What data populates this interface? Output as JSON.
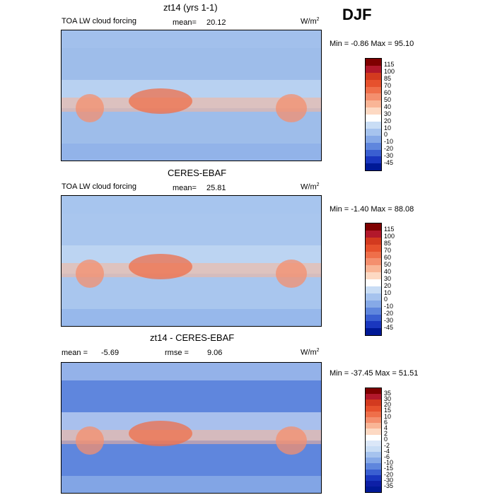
{
  "season": "DJF",
  "panels": [
    {
      "title": "zt14 (yrs 1-1)",
      "label_left": "TOA LW cloud forcing",
      "stat_a_label": "mean=",
      "stat_a_value": "20.12",
      "stat_b_label": "",
      "stat_b_value": "",
      "units_base": "W/m",
      "units_exp": "2",
      "minmax": "Min =  -0.86  Max =  95.10",
      "colorbar_labels": [
        "115",
        "100",
        "85",
        "70",
        "60",
        "50",
        "40",
        "30",
        "20",
        "10",
        "0",
        "-10",
        "-20",
        "-30",
        "-45"
      ],
      "colorbar_colors": [
        "#7f0000",
        "#b2182b",
        "#d33a1f",
        "#e6512d",
        "#ef6f4a",
        "#f48f6e",
        "#f9b596",
        "#fdd9c3",
        "#ffffff",
        "#c9ddf5",
        "#a6c3ee",
        "#86a9e7",
        "#5f86dd",
        "#3a5fd1",
        "#1a37bf",
        "#001996"
      ],
      "map_fill": "#9ebdea"
    },
    {
      "title": "CERES-EBAF",
      "label_left": "TOA LW cloud forcing",
      "stat_a_label": "mean=",
      "stat_a_value": "25.81",
      "stat_b_label": "",
      "stat_b_value": "",
      "units_base": "W/m",
      "units_exp": "2",
      "minmax": "Min =  -1.40  Max =  88.08",
      "colorbar_labels": [
        "115",
        "100",
        "85",
        "70",
        "60",
        "50",
        "40",
        "30",
        "20",
        "10",
        "0",
        "-10",
        "-20",
        "-30",
        "-45"
      ],
      "colorbar_colors": [
        "#7f0000",
        "#b2182b",
        "#d33a1f",
        "#e6512d",
        "#ef6f4a",
        "#f48f6e",
        "#f9b596",
        "#fdd9c3",
        "#ffffff",
        "#c9ddf5",
        "#a6c3ee",
        "#86a9e7",
        "#5f86dd",
        "#3a5fd1",
        "#1a37bf",
        "#001996"
      ],
      "map_fill": "#a9c6ee"
    },
    {
      "title": "zt14 - CERES-EBAF",
      "label_left": "",
      "stat_a_label": "mean =",
      "stat_a_value": "-5.69",
      "stat_b_label": "rmse =",
      "stat_b_value": "9.06",
      "units_base": "W/m",
      "units_exp": "2",
      "minmax": "Min = -37.45  Max =  51.51",
      "colorbar_labels": [
        "35",
        "30",
        "20",
        "15",
        "10",
        "6",
        "4",
        "2",
        "0",
        "-2",
        "-4",
        "-6",
        "-10",
        "-15",
        "-20",
        "-30",
        "-35"
      ],
      "colorbar_colors": [
        "#7f0000",
        "#b2182b",
        "#d33a1f",
        "#e6512d",
        "#ef6f4a",
        "#f48f6e",
        "#f9b596",
        "#fdd9c3",
        "#ffffff",
        "#dbe7f8",
        "#c9ddf5",
        "#a6c3ee",
        "#86a9e7",
        "#5f86dd",
        "#3a5fd1",
        "#1a37bf",
        "#0d1fa6",
        "#001996"
      ],
      "map_fill": "#5f86dd"
    }
  ]
}
